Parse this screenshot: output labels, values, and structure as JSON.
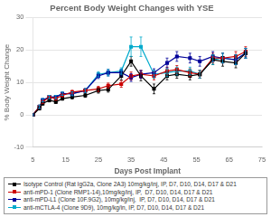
{
  "chart_data": {
    "type": "line",
    "title": "Percent Body Weight Changes with YSE",
    "x_label": "Days Post Implant",
    "y_label": "% Body Weight Change",
    "x": [
      5,
      7,
      8,
      10,
      12,
      14,
      17,
      21,
      25,
      28,
      32,
      35,
      38,
      42,
      46,
      49,
      53,
      56,
      60,
      63,
      67,
      70
    ],
    "series": [
      {
        "name": "Isotype Control (Rat IgG2a, Clone 2A3) 10mg/kg/inj, IP, D7, D10, D14, D17 & D21",
        "color": "#000000",
        "marker": "square",
        "values": [
          0.0,
          2.0,
          3.5,
          4.5,
          4.0,
          5.0,
          5.5,
          6.0,
          7.5,
          7.8,
          12.0,
          16.5,
          12.0,
          8.0,
          12.0,
          12.5,
          12.0,
          12.5,
          17.0,
          16.5,
          16.0,
          19.0
        ],
        "yerr": [
          0.3,
          0.5,
          0.5,
          0.5,
          0.5,
          0.5,
          0.6,
          0.6,
          0.8,
          0.8,
          1.2,
          1.5,
          1.5,
          1.5,
          1.2,
          1.2,
          1.2,
          1.2,
          1.5,
          1.5,
          1.5,
          1.5
        ]
      },
      {
        "name": "anti-mPD-1 (Clone RMP1-14),10mg/kg/inj, IP,  D7, D10, D14, D17 & D21",
        "color": "#cc0000",
        "marker": "square",
        "values": [
          0.0,
          2.5,
          4.0,
          5.5,
          5.0,
          6.0,
          7.0,
          7.5,
          8.0,
          9.0,
          9.5,
          12.0,
          12.5,
          12.0,
          13.5,
          14.0,
          13.0,
          12.5,
          17.5,
          17.5,
          18.0,
          19.5
        ],
        "yerr": [
          0.3,
          0.5,
          0.5,
          0.5,
          0.5,
          0.5,
          0.6,
          0.6,
          0.8,
          0.8,
          1.0,
          1.2,
          1.2,
          1.2,
          1.2,
          1.2,
          1.2,
          1.2,
          1.5,
          1.5,
          1.5,
          1.5
        ]
      },
      {
        "name": "anti-mPD-L1 (Clone 10F.9G2), 10mg/kg/inj,  IP, D7, D10, D14, D17 & D21",
        "color": "#000099",
        "marker": "square",
        "values": [
          0.0,
          2.5,
          4.5,
          5.5,
          5.5,
          6.5,
          6.5,
          7.5,
          12.0,
          13.0,
          13.0,
          11.5,
          12.5,
          13.0,
          16.0,
          18.0,
          17.5,
          16.5,
          18.0,
          17.5,
          17.0,
          19.0
        ],
        "yerr": [
          0.3,
          0.5,
          0.5,
          0.5,
          0.5,
          0.5,
          0.6,
          0.6,
          0.8,
          1.0,
          1.0,
          1.2,
          1.2,
          1.2,
          1.5,
          1.5,
          1.5,
          1.5,
          1.5,
          1.5,
          1.5,
          1.5
        ]
      },
      {
        "name": "anti-mCTLA-4 (Clone 9D9), 10mg/kg/in, IP, D7, D10, D14, D17 & D21",
        "color": "#00aacc",
        "marker": "square",
        "values": [
          0.0,
          2.5,
          4.5,
          5.5,
          5.5,
          6.5,
          6.5,
          7.5,
          12.5,
          13.0,
          13.5,
          21.0,
          21.0,
          12.5,
          13.0,
          13.5,
          13.5,
          12.5,
          17.0,
          17.5,
          17.0,
          19.0
        ],
        "yerr": [
          0.3,
          0.5,
          0.5,
          0.5,
          0.5,
          0.5,
          0.6,
          0.6,
          0.8,
          1.0,
          1.0,
          3.0,
          3.0,
          1.2,
          1.2,
          1.2,
          1.2,
          1.2,
          1.5,
          1.5,
          1.5,
          1.5
        ]
      }
    ],
    "xlim": [
      5,
      75
    ],
    "ylim": [
      -10,
      30
    ],
    "xticks": [
      5,
      15,
      25,
      35,
      45,
      55,
      65,
      75
    ],
    "yticks": [
      -10,
      0,
      10,
      20,
      30
    ],
    "grid": "y",
    "legend": "bottom"
  }
}
